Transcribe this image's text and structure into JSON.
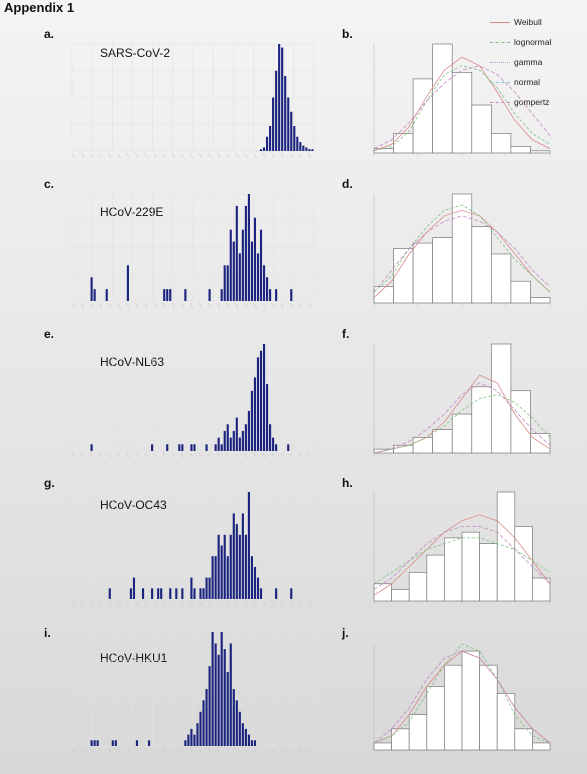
{
  "header": {
    "title": "Appendix 1"
  },
  "legend": {
    "items": [
      "Weibull",
      "lognormal",
      "gamma",
      "normal",
      "gompertz"
    ]
  },
  "panels": [
    {
      "letter": "a.",
      "title": "SARS-CoV-2"
    },
    {
      "letter": "b."
    },
    {
      "letter": "c.",
      "title": "HCoV-229E"
    },
    {
      "letter": "d."
    },
    {
      "letter": "e.",
      "title": "HCoV-NL63"
    },
    {
      "letter": "f."
    },
    {
      "letter": "g.",
      "title": "HCoV-OC43"
    },
    {
      "letter": "h."
    },
    {
      "letter": "i.",
      "title": "HCoV-HKU1"
    },
    {
      "letter": "j."
    }
  ],
  "chart_data": [
    {
      "type": "bar",
      "panel": "a.",
      "title": "SARS-CoV-2",
      "bar_color": "#1a237e",
      "values": [
        0,
        0,
        0,
        0,
        0,
        0,
        0,
        0,
        0,
        0,
        0,
        0,
        0,
        0,
        0,
        0,
        0,
        0,
        0,
        0,
        0,
        0,
        0,
        0,
        0,
        0,
        0,
        0,
        0,
        0,
        0,
        0,
        0,
        0,
        0,
        0,
        0,
        0,
        0,
        0,
        0,
        0,
        0,
        0,
        0,
        0,
        0,
        0,
        0,
        0,
        0,
        0,
        0,
        0,
        0,
        0,
        0,
        0,
        0,
        0,
        0,
        0,
        1,
        2,
        8,
        14,
        30,
        45,
        60,
        58,
        42,
        30,
        22,
        14,
        8,
        5,
        3,
        2,
        1,
        1
      ]
    },
    {
      "type": "histogram",
      "panel": "b.",
      "bars": [
        2,
        9,
        34,
        50,
        37,
        22,
        9,
        3,
        1
      ],
      "curves": [
        [
          1,
          4,
          12,
          26,
          38,
          44,
          40,
          28,
          15,
          6,
          2
        ],
        [
          1,
          3,
          10,
          24,
          36,
          40,
          38,
          30,
          18,
          9,
          4
        ],
        [
          2,
          6,
          14,
          24,
          32,
          38,
          40,
          36,
          28,
          18,
          8
        ]
      ]
    },
    {
      "type": "bar",
      "panel": "c.",
      "title": "HCoV-229E",
      "bar_color": "#1a237e",
      "values": [
        0,
        0,
        0,
        0,
        0,
        0,
        2,
        1,
        0,
        0,
        0,
        1,
        0,
        0,
        0,
        0,
        0,
        0,
        3,
        0,
        0,
        0,
        0,
        0,
        0,
        0,
        0,
        0,
        0,
        0,
        1,
        1,
        1,
        0,
        0,
        0,
        0,
        1,
        0,
        0,
        0,
        0,
        0,
        0,
        0,
        1,
        0,
        0,
        0,
        1,
        3,
        3,
        6,
        5,
        8,
        4,
        6,
        8,
        9,
        5,
        7,
        4,
        6,
        3,
        2,
        1,
        0,
        1,
        0,
        0,
        0,
        0,
        1,
        0,
        0,
        0,
        0,
        0,
        0,
        0
      ]
    },
    {
      "type": "histogram",
      "panel": "d.",
      "bars": [
        3,
        10,
        11,
        12,
        20,
        14,
        9,
        4,
        1
      ],
      "curves": [
        [
          1,
          4,
          9,
          13,
          16,
          17,
          16,
          13,
          9,
          5,
          2
        ],
        [
          2,
          5,
          10,
          14,
          17,
          18,
          16,
          12,
          8,
          5,
          2
        ],
        [
          2,
          6,
          10,
          13,
          15,
          16,
          15,
          13,
          10,
          6,
          3
        ]
      ]
    },
    {
      "type": "bar",
      "panel": "e.",
      "title": "HCoV-NL63",
      "bar_color": "#1a237e",
      "values": [
        0,
        0,
        0,
        0,
        0,
        0,
        1,
        0,
        0,
        0,
        0,
        0,
        0,
        0,
        0,
        0,
        0,
        0,
        0,
        0,
        0,
        0,
        0,
        0,
        0,
        0,
        1,
        0,
        0,
        0,
        0,
        1,
        0,
        0,
        0,
        1,
        1,
        0,
        0,
        1,
        1,
        0,
        0,
        0,
        1,
        0,
        0,
        1,
        2,
        1,
        3,
        4,
        2,
        3,
        5,
        2,
        3,
        4,
        6,
        9,
        11,
        14,
        15,
        16,
        10,
        4,
        2,
        1,
        0,
        0,
        0,
        1,
        0,
        0,
        0,
        0,
        0,
        0,
        0,
        0
      ],
      "override": {
        "5": 1,
        "10": 1,
        "15": 1,
        "20": 1,
        "21": 1,
        "22": 1
      }
    },
    {
      "type": "histogram",
      "panel": "f.",
      "bars": [
        1,
        2,
        4,
        6,
        10,
        17,
        28,
        16,
        5
      ],
      "curves": [
        [
          0,
          1,
          2,
          4,
          8,
          14,
          20,
          18,
          10,
          4,
          1
        ],
        [
          0,
          1,
          2,
          4,
          7,
          11,
          14,
          15,
          13,
          9,
          4
        ],
        [
          0,
          1,
          3,
          6,
          10,
          15,
          18,
          16,
          11,
          6,
          2
        ]
      ]
    },
    {
      "type": "bar",
      "panel": "g.",
      "title": "HCoV-OC43",
      "bar_color": "#1a237e",
      "values": [
        0,
        0,
        0,
        0,
        0,
        0,
        0,
        0,
        0,
        0,
        0,
        0,
        1,
        0,
        0,
        0,
        0,
        0,
        0,
        1,
        2,
        0,
        0,
        1,
        0,
        0,
        1,
        0,
        1,
        1,
        0,
        0,
        1,
        0,
        1,
        0,
        1,
        0,
        0,
        2,
        1,
        0,
        1,
        1,
        2,
        2,
        4,
        4,
        6,
        5,
        6,
        4,
        6,
        8,
        7,
        6,
        8,
        6,
        10,
        4,
        3,
        2,
        1,
        0,
        0,
        0,
        0,
        1,
        0,
        0,
        0,
        0,
        1,
        0,
        0,
        0,
        0,
        0,
        0,
        0
      ]
    },
    {
      "type": "histogram",
      "panel": "h.",
      "bars": [
        3,
        2,
        5,
        8,
        11,
        12,
        10,
        19,
        13,
        4
      ],
      "curves": [
        [
          1,
          3,
          6,
          9,
          12,
          14,
          15,
          14,
          11,
          7,
          3
        ],
        [
          3,
          5,
          7,
          9,
          10,
          11,
          11,
          10,
          9,
          7,
          5
        ],
        [
          2,
          4,
          7,
          10,
          12,
          13,
          13,
          12,
          9,
          6,
          3
        ]
      ]
    },
    {
      "type": "bar",
      "panel": "i.",
      "title": "HCoV-HKU1",
      "bar_color": "#1a237e",
      "values": [
        0,
        0,
        0,
        0,
        0,
        0,
        1,
        1,
        1,
        0,
        0,
        0,
        0,
        1,
        1,
        0,
        0,
        0,
        0,
        0,
        0,
        1,
        0,
        0,
        0,
        1,
        0,
        0,
        0,
        0,
        0,
        0,
        0,
        0,
        0,
        0,
        0,
        1,
        2,
        3,
        2,
        4,
        6,
        8,
        10,
        14,
        20,
        18,
        16,
        20,
        17,
        13,
        18,
        10,
        8,
        6,
        4,
        3,
        2,
        1,
        1,
        0,
        0,
        0,
        0,
        0,
        0,
        0,
        0,
        0,
        0,
        0,
        0,
        0,
        0,
        0,
        0,
        0,
        0,
        0
      ]
    },
    {
      "type": "histogram",
      "panel": "j.",
      "bars": [
        1,
        3,
        5,
        9,
        12,
        14,
        12,
        8,
        3,
        1
      ],
      "curves": [
        [
          1,
          2,
          5,
          9,
          12,
          14,
          13,
          10,
          6,
          3,
          1
        ],
        [
          1,
          2,
          4,
          8,
          12,
          15,
          14,
          10,
          5,
          2,
          1
        ],
        [
          1,
          3,
          6,
          10,
          13,
          14,
          13,
          10,
          6,
          3,
          1
        ]
      ]
    }
  ]
}
